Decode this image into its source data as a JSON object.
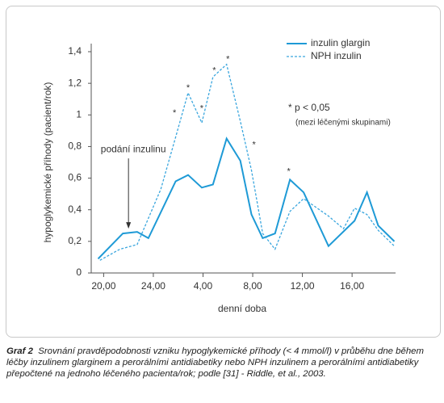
{
  "chart_data": {
    "type": "line",
    "y_label": "hypoglykemické příhody (pacient/rok)",
    "x_label": "denní doba",
    "xlim": [
      19,
      43.5
    ],
    "xticks": [
      {
        "value": 20,
        "label": "20,00"
      },
      {
        "value": 24,
        "label": "24,00"
      },
      {
        "value": 28,
        "label": "4,00"
      },
      {
        "value": 32,
        "label": "8,00"
      },
      {
        "value": 36,
        "label": "12,00"
      },
      {
        "value": 40,
        "label": "16,00"
      }
    ],
    "ylim": [
      0,
      1.4
    ],
    "yticks": [
      0,
      {
        "value": 0.2,
        "label": "0,2"
      },
      {
        "value": 0.4,
        "label": "0,4"
      },
      {
        "value": 0.6,
        "label": "0,6"
      },
      {
        "value": 0.8,
        "label": "0,8"
      },
      1,
      {
        "value": 1.2,
        "label": "1,2"
      },
      {
        "value": 1.4,
        "label": "1,4"
      }
    ],
    "legend": "top-right",
    "series": [
      {
        "name": "inzulin glargin",
        "color": "#1e9ad6",
        "dashed": false,
        "x": [
          19.55,
          21.55,
          22.7,
          23.6,
          25.8,
          26.8,
          27.9,
          28.8,
          29.9,
          31.0,
          31.9,
          32.8,
          33.8,
          35.0,
          36.1,
          38.1,
          40.2,
          41.2,
          42.1,
          43.4
        ],
        "values": [
          0.09,
          0.25,
          0.26,
          0.22,
          0.58,
          0.62,
          0.54,
          0.56,
          0.85,
          0.71,
          0.37,
          0.22,
          0.25,
          0.59,
          0.51,
          0.17,
          0.33,
          0.51,
          0.3,
          0.2
        ]
      },
      {
        "name": "NPH inzulin",
        "color": "#3aa6de",
        "dashed": true,
        "x": [
          19.7,
          21.3,
          22.7,
          24.6,
          25.8,
          26.8,
          27.9,
          28.8,
          29.9,
          31.0,
          31.9,
          32.8,
          33.8,
          35.0,
          36.1,
          38.1,
          39.3,
          40.2,
          41.2,
          42.1,
          43.4
        ],
        "values": [
          0.08,
          0.15,
          0.18,
          0.53,
          0.86,
          1.14,
          0.95,
          1.24,
          1.32,
          0.96,
          0.65,
          0.25,
          0.15,
          0.39,
          0.47,
          0.36,
          0.28,
          0.41,
          0.37,
          0.27,
          0.17
        ]
      }
    ],
    "markers": [
      {
        "text": "*",
        "x": 25.7,
        "y": 1.01
      },
      {
        "text": "*",
        "x": 26.8,
        "y": 1.17
      },
      {
        "text": "*",
        "x": 27.9,
        "y": 1.04
      },
      {
        "text": "*",
        "x": 28.9,
        "y": 1.28
      },
      {
        "text": "*",
        "x": 30.0,
        "y": 1.35
      },
      {
        "text": "*",
        "x": 32.1,
        "y": 0.81
      },
      {
        "text": "*",
        "x": 34.9,
        "y": 0.64
      }
    ],
    "arrow_annotation": {
      "text": "podání inzulinu",
      "x": 22.0,
      "y": 0.27
    },
    "note": "* p < 0,05",
    "note_sub": "(mezi léčenými skupinami)"
  },
  "caption_label": "Graf 2",
  "caption": "Srovnání pravděpodobnosti vzniku hypoglykemické příhody (< 4 mmol/l) v průběhu dne během léčby inzulinem glarginem a perorálními antidiabetiky nebo NPH inzulinem a perorálními antidiabetiky přepočtené na jednoho léčeného pacienta/rok; podle [31] - Riddle, et al., 2003."
}
